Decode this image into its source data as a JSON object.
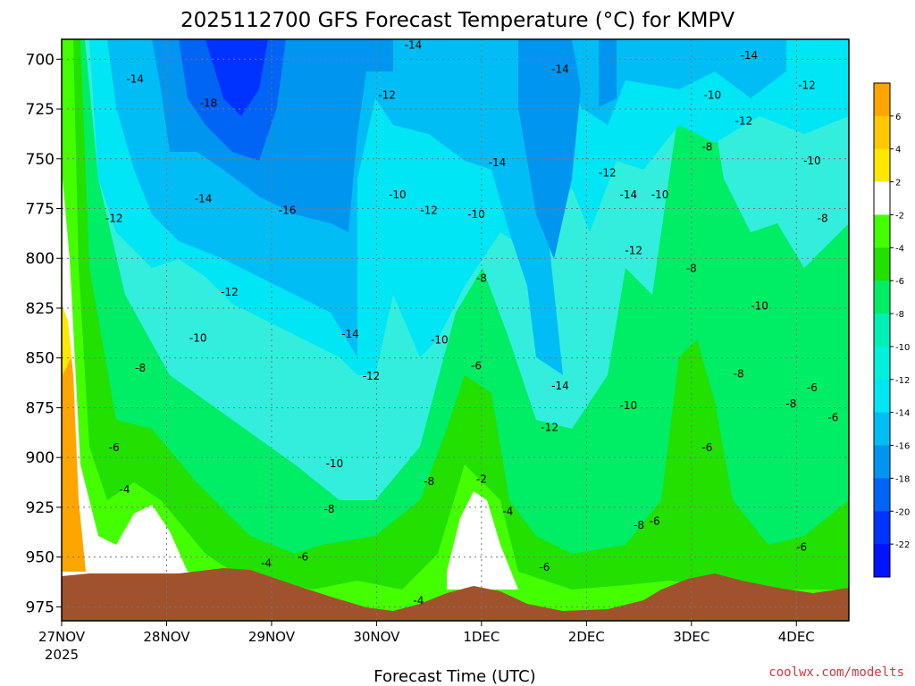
{
  "chart_data": {
    "type": "heatmap",
    "title": "2025112700 GFS Forecast Temperature (°C) for KMPV",
    "xlabel": "Forecast Time (UTC)",
    "ylabel": "",
    "x_ticks": [
      "27NOV",
      "28NOV",
      "29NOV",
      "30NOV",
      "1DEC",
      "2DEC",
      "3DEC",
      "4DEC"
    ],
    "x_year": "2025",
    "y_ticks": [
      700,
      725,
      750,
      775,
      800,
      825,
      850,
      875,
      900,
      925,
      950,
      975
    ],
    "ylim": [
      982,
      690
    ],
    "xlim": [
      0,
      7.5
    ],
    "colorbar": {
      "labels": [
        6,
        4,
        2,
        -2,
        -4,
        -6,
        -8,
        -10,
        -12,
        -14,
        -16,
        -18,
        -20,
        -22
      ],
      "colors": [
        "#ffa500",
        "#ffc800",
        "#ffe700",
        "#ffffff",
        "#44ff00",
        "#22e000",
        "#00ee66",
        "#00f0b4",
        "#00f0dc",
        "#00e6f5",
        "#00bef5",
        "#0096f0",
        "#0064f5",
        "#0033ff",
        "#0014ff"
      ]
    },
    "contour_labels": [
      {
        "text": "-14",
        "x": 0.7,
        "y": 710
      },
      {
        "text": "-18",
        "x": 1.4,
        "y": 722
      },
      {
        "text": "-14",
        "x": 3.35,
        "y": 693
      },
      {
        "text": "-14",
        "x": 4.75,
        "y": 705
      },
      {
        "text": "-14",
        "x": 6.55,
        "y": 698
      },
      {
        "text": "-12",
        "x": 3.1,
        "y": 718
      },
      {
        "text": "-10",
        "x": 6.2,
        "y": 718
      },
      {
        "text": "-12",
        "x": 7.1,
        "y": 713
      },
      {
        "text": "-12",
        "x": 6.5,
        "y": 731
      },
      {
        "text": "-14",
        "x": 4.15,
        "y": 752
      },
      {
        "text": "-12",
        "x": 5.2,
        "y": 757
      },
      {
        "text": "-10",
        "x": 7.15,
        "y": 751
      },
      {
        "text": "-8",
        "x": 6.15,
        "y": 744
      },
      {
        "text": "-14",
        "x": 1.35,
        "y": 770
      },
      {
        "text": "-16",
        "x": 2.15,
        "y": 776
      },
      {
        "text": "-10",
        "x": 3.2,
        "y": 768
      },
      {
        "text": "-12",
        "x": 3.5,
        "y": 776
      },
      {
        "text": "-10",
        "x": 3.95,
        "y": 778
      },
      {
        "text": "-14",
        "x": 5.4,
        "y": 768
      },
      {
        "text": "-10",
        "x": 5.7,
        "y": 768
      },
      {
        "text": "-12",
        "x": 0.5,
        "y": 780
      },
      {
        "text": "-8",
        "x": 7.25,
        "y": 780
      },
      {
        "text": "-12",
        "x": 5.45,
        "y": 796
      },
      {
        "text": "-8",
        "x": 6.0,
        "y": 805
      },
      {
        "text": "-12",
        "x": 1.6,
        "y": 817
      },
      {
        "text": "-8",
        "x": 4.0,
        "y": 810
      },
      {
        "text": "-10",
        "x": 6.65,
        "y": 824
      },
      {
        "text": "-10",
        "x": 1.3,
        "y": 840
      },
      {
        "text": "-14",
        "x": 2.75,
        "y": 838
      },
      {
        "text": "-10",
        "x": 3.6,
        "y": 841
      },
      {
        "text": "-8",
        "x": 0.75,
        "y": 855
      },
      {
        "text": "-6",
        "x": 3.95,
        "y": 854
      },
      {
        "text": "-12",
        "x": 2.95,
        "y": 859
      },
      {
        "text": "-14",
        "x": 4.75,
        "y": 864
      },
      {
        "text": "-8",
        "x": 6.45,
        "y": 858
      },
      {
        "text": "-6",
        "x": 7.15,
        "y": 865
      },
      {
        "text": "-8",
        "x": 6.95,
        "y": 873
      },
      {
        "text": "-10",
        "x": 5.4,
        "y": 874
      },
      {
        "text": "-6",
        "x": 7.35,
        "y": 880
      },
      {
        "text": "-12",
        "x": 4.65,
        "y": 885
      },
      {
        "text": "-6",
        "x": 0.5,
        "y": 895
      },
      {
        "text": "-6",
        "x": 6.15,
        "y": 895
      },
      {
        "text": "-10",
        "x": 2.6,
        "y": 903
      },
      {
        "text": "-8",
        "x": 3.5,
        "y": 912
      },
      {
        "text": "-2",
        "x": 4.0,
        "y": 911
      },
      {
        "text": "-4",
        "x": 0.6,
        "y": 916
      },
      {
        "text": "-8",
        "x": 2.55,
        "y": 926
      },
      {
        "text": "-4",
        "x": 4.25,
        "y": 927
      },
      {
        "text": "-6",
        "x": 5.65,
        "y": 932
      },
      {
        "text": "-8",
        "x": 5.5,
        "y": 934
      },
      {
        "text": "-6",
        "x": 7.05,
        "y": 945
      },
      {
        "text": "-6",
        "x": 2.3,
        "y": 950
      },
      {
        "text": "-4",
        "x": 1.95,
        "y": 953
      },
      {
        "text": "-6",
        "x": 4.6,
        "y": 955
      },
      {
        "text": "-4",
        "x": 3.4,
        "y": 972
      }
    ]
  },
  "credit": "coolwx.com/modelts"
}
